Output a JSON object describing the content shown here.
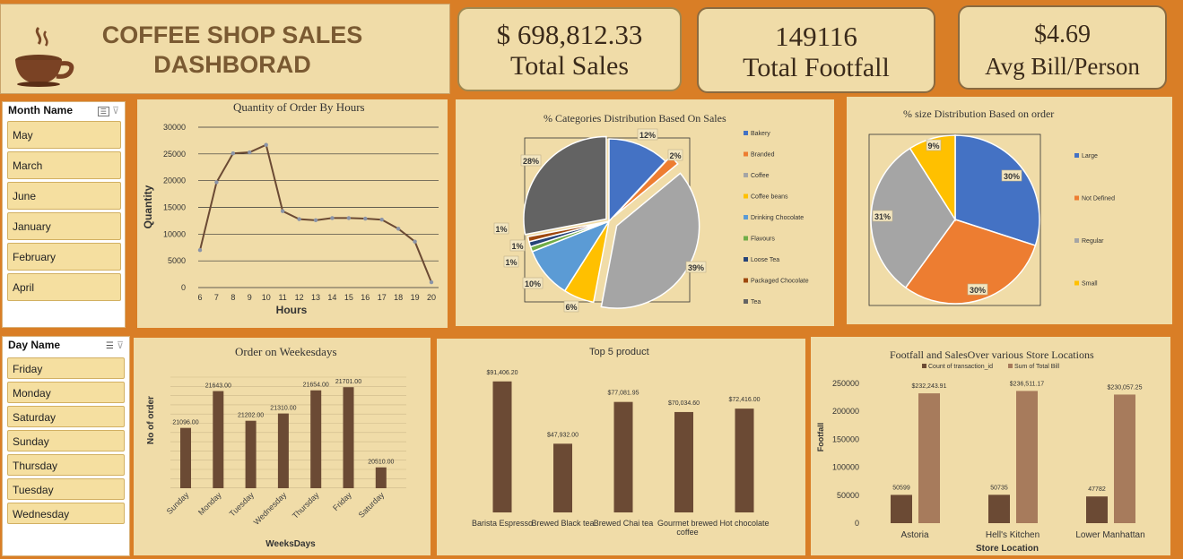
{
  "header": {
    "title_line1": "COFFEE SHOP SALES",
    "title_line2": "DASHBORAD"
  },
  "kpis": [
    {
      "value": "$ 698,812.33",
      "label": "Total Sales"
    },
    {
      "value": "149116",
      "label": "Total Footfall"
    },
    {
      "value": "$4.69",
      "label": "Avg Bill/Person"
    }
  ],
  "month_slicer": {
    "title": "Month Name",
    "items": [
      "May",
      "March",
      "June",
      "January",
      "February",
      "April"
    ]
  },
  "day_slicer": {
    "title": "Day Name",
    "items": [
      "Friday",
      "Monday",
      "Saturday",
      "Sunday",
      "Thursday",
      "Tuesday",
      "Wednesday"
    ]
  },
  "colors": {
    "background": "#D97E26",
    "panel": "#F0DCA8",
    "brown": "#6B4A34",
    "light_brown": "#A77B5C",
    "pie_blue": "#4472C4",
    "pie_orange": "#ED7D31",
    "pie_gray": "#A5A5A5",
    "pie_yellow": "#FFC000",
    "pie_lightblue": "#5B9BD5",
    "pie_green": "#70AD47",
    "pie_navy": "#264478",
    "pie_darkorange": "#9E480E",
    "pie_darkgray": "#636363"
  },
  "chart_data": [
    {
      "id": "hours",
      "type": "line",
      "title": "Quantity of Order By Hours",
      "xlabel": "Hours",
      "ylabel": "Quantity",
      "x": [
        6,
        7,
        8,
        9,
        10,
        11,
        12,
        13,
        14,
        15,
        16,
        17,
        18,
        19,
        20
      ],
      "values": [
        7000,
        19700,
        25100,
        25300,
        26700,
        14300,
        12800,
        12600,
        13000,
        13000,
        12900,
        12700,
        11000,
        8600,
        1000
      ],
      "ylim": [
        0,
        30000
      ],
      "yticks": [
        "0",
        "5000",
        "10000",
        "15000",
        "20000",
        "25000",
        "30000"
      ],
      "grid": true
    },
    {
      "id": "categories",
      "type": "pie",
      "title": "% Categories Distribution Based On Sales",
      "categories": [
        "Bakery",
        "Branded",
        "Coffee",
        "Coffee beans",
        "Drinking Chocolate",
        "Flavours",
        "Loose Tea",
        "Packaged Chocolate",
        "Tea"
      ],
      "values": [
        12,
        2,
        39,
        6,
        10,
        1,
        1,
        1,
        28
      ],
      "labels": [
        "12%",
        "2%",
        "39%",
        "6%",
        "10%",
        "1%",
        "1%",
        "1%",
        "28%"
      ],
      "legend": "right"
    },
    {
      "id": "size",
      "type": "pie",
      "title": "% size  Distribution Based on order",
      "categories": [
        "Large",
        "Not Defined",
        "Regular",
        "Small"
      ],
      "values": [
        30,
        30,
        31,
        9
      ],
      "labels": [
        "30%",
        "30%",
        "31%",
        "9%"
      ],
      "legend": "right"
    },
    {
      "id": "weekdays",
      "type": "bar",
      "title": "Order on Weekesdays",
      "xlabel": "WeeksDays",
      "ylabel": "No of order",
      "categories": [
        "Sunday",
        "Monday",
        "Tuesday",
        "Wednesday",
        "Thursday",
        "Friday",
        "Saturday"
      ],
      "values": [
        21096,
        21643,
        21202,
        21310,
        21654,
        21701,
        20510
      ],
      "value_labels": [
        "21096.00",
        "21643.00",
        "21202.00",
        "21310.00",
        "21654.00",
        "21701.00",
        "20510.00"
      ],
      "ylim": [
        20200,
        21850
      ]
    },
    {
      "id": "top5",
      "type": "bar",
      "title": "Top 5 product",
      "categories": [
        "Barista Espresso",
        "Brewed Black tea",
        "Brewed Chai tea",
        "Gourmet brewed coffee",
        "Hot chocolate"
      ],
      "values": [
        91406.2,
        47932.0,
        77081.95,
        70034.6,
        72416.0
      ],
      "value_labels": [
        "$91,406.20",
        "$47,932.00",
        "$77,081.95",
        "$70,034.60",
        "$72,416.00"
      ],
      "ylim": [
        0,
        100000
      ]
    },
    {
      "id": "stores",
      "type": "bar",
      "title": "Footfall  and SalesOver various Store Locations",
      "xlabel": "Store Location",
      "ylabel": "Footfall",
      "categories": [
        "Astoria",
        "Hell's Kitchen",
        "Lower Manhattan"
      ],
      "series": [
        {
          "name": "Count of transaction_id",
          "values": [
            50599,
            50735,
            47782
          ],
          "labels": [
            "50599",
            "50735",
            "47782"
          ]
        },
        {
          "name": "Sum of Total Bill",
          "values": [
            232243.91,
            236511.17,
            230057.25
          ],
          "labels": [
            "$232,243.91",
            "$236,511.17",
            "$230,057.25"
          ]
        }
      ],
      "ylim": [
        0,
        250000
      ],
      "yticks": [
        "0",
        "50000",
        "100000",
        "150000",
        "200000",
        "250000"
      ],
      "legend": "top"
    }
  ]
}
